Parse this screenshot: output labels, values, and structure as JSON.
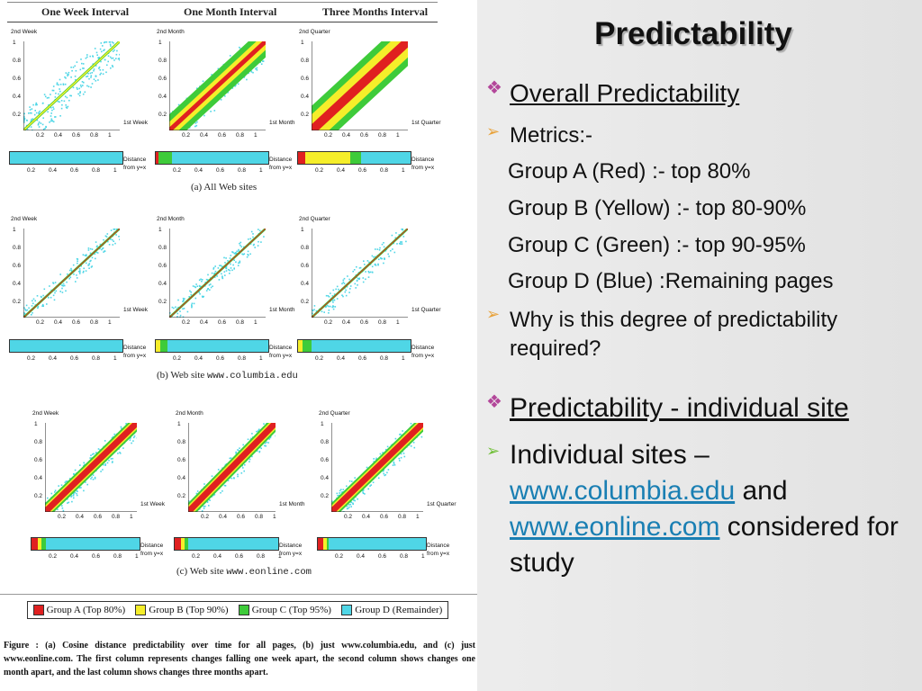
{
  "slide": {
    "title": "Predictability",
    "bullets": [
      {
        "marker": "diamond",
        "text": "Overall Predictability"
      },
      {
        "marker": "arrow",
        "text": "Metrics:-"
      },
      {
        "marker": "none",
        "text": "Group A (Red) :- top 80%"
      },
      {
        "marker": "none",
        "text": "Group B (Yellow) :- top 80-90%"
      },
      {
        "marker": "none",
        "text": "Group C (Green) :- top 90-95%"
      },
      {
        "marker": "none",
        "text": "Group D (Blue) :Remaining pages"
      },
      {
        "marker": "arrow",
        "text": "Why is this degree of predictability required?"
      },
      {
        "marker": "diamond",
        "text": "Predictability - individual site"
      }
    ],
    "sites_bullet": {
      "prefix": "Individual sites –",
      "link1": "www.columbia.edu",
      "mid": "and",
      "link2": "www.eonline.com",
      "suffix": "considered for study"
    }
  },
  "figure": {
    "column_titles": [
      "One Week Interval",
      "One Month Interval",
      "Three Months Interval"
    ],
    "y_axis_labels": [
      "2nd Week",
      "2nd Month",
      "2nd Quarter"
    ],
    "x_axis_labels": [
      "1st Week",
      "1st Month",
      "1st Quarter"
    ],
    "y_ticks": [
      "1",
      "0.8",
      "0.6",
      "0.4",
      "0.2"
    ],
    "x_ticks": [
      "0.2",
      "0.4",
      "0.6",
      "0.8",
      "1"
    ],
    "strip_label_1": "Distance",
    "strip_label_2": "from y=x",
    "row_captions": [
      {
        "prefix": "(a) All Web sites",
        "mono": ""
      },
      {
        "prefix": "(b) Web site",
        "mono": "www.columbia.edu"
      },
      {
        "prefix": "(c) Web site",
        "mono": "www.eonline.com"
      }
    ],
    "legend": [
      {
        "label": "Group A (Top 80%)",
        "color": "#e02020"
      },
      {
        "label": "Group B (Top 90%)",
        "color": "#f5ee2a"
      },
      {
        "label": "Group C (Top 95%)",
        "color": "#3ecb3a"
      },
      {
        "label": "Group D (Remainder)",
        "color": "#4fd6e6"
      }
    ],
    "caption": "Figure : (a) Cosine distance predictability over time for all pages, (b) just www.columbia.edu, and (c) just www.eonline.com. The first column represents changes falling one week apart, the second column shows changes one month apart, and the last column shows changes three months apart."
  },
  "colors": {
    "red": "#e02020",
    "yellow": "#f5ee2a",
    "green": "#3ecb3a",
    "cyan": "#4fd6e6"
  }
}
